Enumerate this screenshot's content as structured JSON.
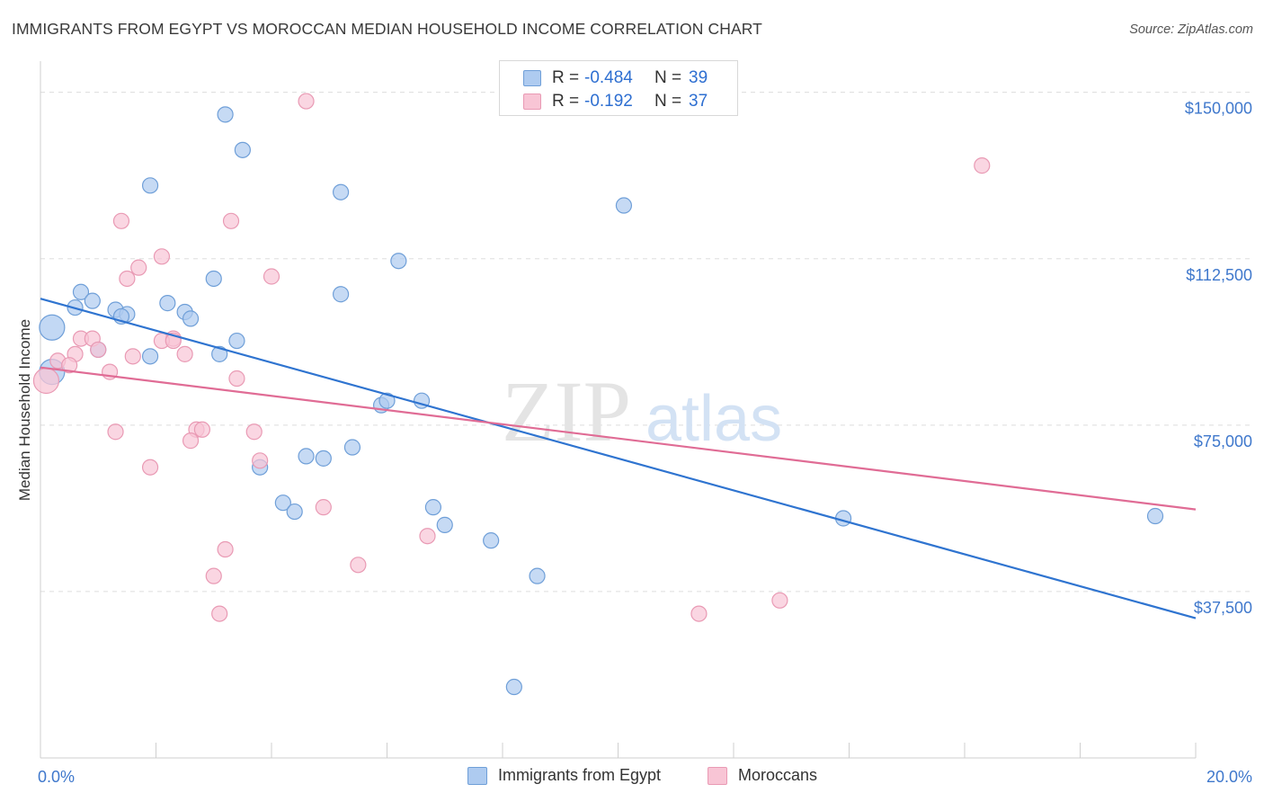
{
  "title": "IMMIGRANTS FROM EGYPT VS MOROCCAN MEDIAN HOUSEHOLD INCOME CORRELATION CHART",
  "source": "Source: ZipAtlas.com",
  "watermark": {
    "zip": "ZIP",
    "atlas": "atlas"
  },
  "colors": {
    "egypt_fill": "#aecbf0",
    "egypt_stroke": "#6f9fd8",
    "egypt_line": "#2f74d0",
    "moroccan_fill": "#f8c5d5",
    "moroccan_stroke": "#e99ab4",
    "moroccan_line": "#e06c95",
    "tick_label": "#3f78cc",
    "grid": "#dddddd"
  },
  "legend": {
    "rows": [
      {
        "r_label": "R =",
        "r_value": "-0.484",
        "n_label": "N =",
        "n_value": "39"
      },
      {
        "r_label": "R =",
        "r_value": "-0.192",
        "n_label": "N =",
        "n_value": "37"
      }
    ]
  },
  "chart_data": {
    "type": "scatter",
    "title": "IMMIGRANTS FROM EGYPT VS MOROCCAN MEDIAN HOUSEHOLD INCOME CORRELATION CHART",
    "xlabel": "",
    "ylabel": "Median Household Income",
    "xlim": [
      0,
      20
    ],
    "ylim": [
      0,
      155000
    ],
    "x_tick_labels": [
      "0.0%",
      "20.0%"
    ],
    "y_ticks": [
      37500,
      75000,
      112500,
      150000
    ],
    "y_tick_labels": [
      "$37,500",
      "$75,000",
      "$112,500",
      "$150,000"
    ],
    "grid": true,
    "legend_position": "bottom",
    "series": [
      {
        "name": "Immigrants from Egypt",
        "points": [
          [
            0.2,
            97000,
            "large"
          ],
          [
            0.2,
            87000,
            "large"
          ],
          [
            0.7,
            105000
          ],
          [
            0.9,
            103000
          ],
          [
            0.6,
            101500
          ],
          [
            1.3,
            101000
          ],
          [
            1.5,
            100000
          ],
          [
            1.0,
            92000
          ],
          [
            1.4,
            99500
          ],
          [
            2.2,
            102500
          ],
          [
            2.5,
            100500
          ],
          [
            2.6,
            99000
          ],
          [
            3.0,
            108000
          ],
          [
            1.9,
            129000
          ],
          [
            3.2,
            145000
          ],
          [
            3.5,
            137000
          ],
          [
            3.4,
            94000
          ],
          [
            3.1,
            91000
          ],
          [
            1.9,
            90500
          ],
          [
            5.2,
            104500
          ],
          [
            5.2,
            127500
          ],
          [
            6.2,
            112000
          ],
          [
            10.1,
            124500
          ],
          [
            5.9,
            79500
          ],
          [
            6.0,
            80500
          ],
          [
            6.6,
            80500
          ],
          [
            5.4,
            70000
          ],
          [
            4.6,
            68000
          ],
          [
            4.9,
            67500
          ],
          [
            3.8,
            65500
          ],
          [
            4.2,
            57500
          ],
          [
            4.4,
            55500
          ],
          [
            6.8,
            56500
          ],
          [
            7.0,
            52500
          ],
          [
            7.8,
            49000
          ],
          [
            8.6,
            41000
          ],
          [
            8.2,
            16000
          ],
          [
            13.9,
            54000
          ],
          [
            19.3,
            54500
          ]
        ]
      },
      {
        "name": "Moroccans",
        "points": [
          [
            0.1,
            85000,
            "large"
          ],
          [
            4.6,
            148000
          ],
          [
            16.3,
            133500
          ],
          [
            1.4,
            121000
          ],
          [
            3.3,
            121000
          ],
          [
            2.1,
            113000
          ],
          [
            1.7,
            110500
          ],
          [
            1.5,
            108000
          ],
          [
            4.0,
            108500
          ],
          [
            0.7,
            94500
          ],
          [
            0.9,
            94500
          ],
          [
            0.6,
            91000
          ],
          [
            1.0,
            92000
          ],
          [
            0.3,
            89500
          ],
          [
            0.5,
            88500
          ],
          [
            1.2,
            87000
          ],
          [
            1.6,
            90500
          ],
          [
            2.3,
            94500
          ],
          [
            2.1,
            94000
          ],
          [
            2.5,
            91000
          ],
          [
            3.4,
            85500
          ],
          [
            1.3,
            73500
          ],
          [
            2.7,
            74000
          ],
          [
            2.8,
            74000
          ],
          [
            2.6,
            71500
          ],
          [
            3.7,
            73500
          ],
          [
            3.8,
            67000
          ],
          [
            1.9,
            65500
          ],
          [
            4.9,
            56500
          ],
          [
            6.7,
            50000
          ],
          [
            3.2,
            47000
          ],
          [
            5.5,
            43500
          ],
          [
            3.0,
            41000
          ],
          [
            3.1,
            32500
          ],
          [
            11.4,
            32500
          ],
          [
            12.8,
            35500
          ],
          [
            2.3,
            94000
          ]
        ]
      }
    ],
    "trend_lines": [
      {
        "name": "Immigrants from Egypt",
        "x": [
          0,
          20
        ],
        "y": [
          103500,
          31500
        ]
      },
      {
        "name": "Moroccans",
        "x": [
          0,
          20
        ],
        "y": [
          88000,
          56000
        ]
      }
    ]
  }
}
